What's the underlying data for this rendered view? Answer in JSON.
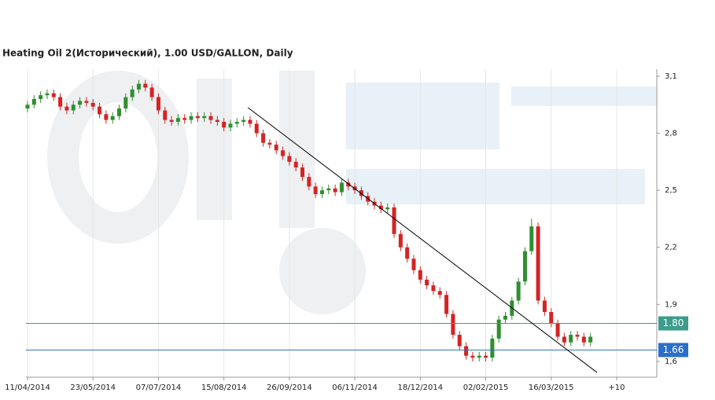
{
  "chart_data": {
    "type": "candlestick",
    "title": "Heating Oil 2(Исторический), 1.00 USD/GALLON, Daily",
    "x": [
      0,
      3,
      6,
      9,
      12,
      15,
      18,
      21,
      24,
      27,
      30,
      33,
      36,
      39,
      42,
      45,
      48,
      51,
      54,
      57,
      60,
      63,
      66,
      69,
      72,
      75,
      78,
      81,
      84,
      87,
      90,
      93,
      96,
      99,
      102,
      105,
      108,
      111,
      114,
      117,
      120,
      123,
      126,
      129,
      132,
      135,
      138,
      141,
      144,
      147,
      150,
      153,
      156,
      159,
      162,
      165,
      168,
      171,
      174,
      177,
      180,
      183,
      186,
      189,
      192,
      195,
      198,
      201,
      204,
      207,
      210,
      213,
      216,
      219,
      222,
      225,
      228,
      231,
      234,
      237,
      240,
      243,
      246,
      249,
      252,
      255,
      258
    ],
    "open": [
      2.93,
      2.95,
      2.98,
      3.0,
      3.01,
      2.99,
      2.94,
      2.92,
      2.95,
      2.97,
      2.96,
      2.94,
      2.9,
      2.87,
      2.89,
      2.93,
      2.99,
      3.03,
      3.06,
      3.04,
      2.99,
      2.92,
      2.87,
      2.86,
      2.88,
      2.87,
      2.89,
      2.88,
      2.89,
      2.87,
      2.86,
      2.83,
      2.85,
      2.86,
      2.87,
      2.85,
      2.8,
      2.75,
      2.74,
      2.71,
      2.68,
      2.65,
      2.62,
      2.57,
      2.52,
      2.48,
      2.5,
      2.51,
      2.49,
      2.54,
      2.52,
      2.5,
      2.47,
      2.44,
      2.42,
      2.4,
      2.41,
      2.27,
      2.2,
      2.14,
      2.08,
      2.03,
      2.0,
      1.97,
      1.95,
      1.85,
      1.74,
      1.68,
      1.63,
      1.62,
      1.63,
      1.62,
      1.72,
      1.82,
      1.84,
      1.92,
      2.02,
      2.18,
      2.31,
      1.92,
      1.86,
      1.8,
      1.73,
      1.7,
      1.74,
      1.73,
      1.7
    ],
    "high": [
      2.97,
      3.0,
      3.02,
      3.03,
      3.03,
      3.01,
      2.96,
      2.97,
      2.99,
      2.99,
      2.98,
      2.96,
      2.92,
      2.91,
      2.95,
      3.01,
      3.05,
      3.08,
      3.08,
      3.06,
      3.01,
      2.94,
      2.89,
      2.9,
      2.9,
      2.91,
      2.91,
      2.91,
      2.91,
      2.89,
      2.88,
      2.87,
      2.88,
      2.89,
      2.89,
      2.87,
      2.82,
      2.77,
      2.76,
      2.73,
      2.7,
      2.67,
      2.64,
      2.59,
      2.54,
      2.52,
      2.53,
      2.53,
      2.56,
      2.56,
      2.54,
      2.52,
      2.49,
      2.46,
      2.44,
      2.43,
      2.43,
      2.29,
      2.22,
      2.16,
      2.1,
      2.05,
      2.02,
      1.99,
      1.97,
      1.87,
      1.76,
      1.7,
      1.65,
      1.65,
      1.65,
      1.74,
      1.84,
      1.86,
      1.94,
      2.04,
      2.2,
      2.35,
      2.33,
      1.94,
      1.88,
      1.82,
      1.75,
      1.76,
      1.76,
      1.75,
      1.75
    ],
    "low": [
      2.91,
      2.93,
      2.96,
      2.98,
      2.97,
      2.92,
      2.9,
      2.9,
      2.93,
      2.94,
      2.92,
      2.88,
      2.85,
      2.85,
      2.87,
      2.91,
      2.97,
      3.01,
      3.02,
      2.97,
      2.9,
      2.85,
      2.84,
      2.84,
      2.85,
      2.85,
      2.86,
      2.86,
      2.85,
      2.84,
      2.81,
      2.81,
      2.83,
      2.84,
      2.83,
      2.78,
      2.73,
      2.72,
      2.69,
      2.66,
      2.63,
      2.6,
      2.55,
      2.5,
      2.46,
      2.46,
      2.48,
      2.47,
      2.47,
      2.5,
      2.48,
      2.45,
      2.42,
      2.4,
      2.38,
      2.38,
      2.25,
      2.18,
      2.12,
      2.06,
      2.01,
      1.98,
      1.95,
      1.93,
      1.83,
      1.72,
      1.66,
      1.61,
      1.6,
      1.6,
      1.6,
      1.6,
      1.7,
      1.8,
      1.82,
      1.9,
      2.0,
      2.16,
      1.9,
      1.84,
      1.78,
      1.71,
      1.68,
      1.68,
      1.71,
      1.68,
      1.68
    ],
    "close": [
      2.95,
      2.98,
      3.0,
      3.01,
      2.99,
      2.94,
      2.92,
      2.95,
      2.97,
      2.96,
      2.94,
      2.9,
      2.87,
      2.89,
      2.93,
      2.99,
      3.03,
      3.06,
      3.04,
      2.99,
      2.92,
      2.87,
      2.86,
      2.88,
      2.87,
      2.89,
      2.88,
      2.89,
      2.87,
      2.86,
      2.83,
      2.85,
      2.86,
      2.87,
      2.85,
      2.8,
      2.75,
      2.74,
      2.71,
      2.68,
      2.65,
      2.62,
      2.57,
      2.52,
      2.48,
      2.5,
      2.51,
      2.49,
      2.54,
      2.52,
      2.5,
      2.47,
      2.44,
      2.42,
      2.4,
      2.41,
      2.27,
      2.2,
      2.14,
      2.08,
      2.03,
      2.0,
      1.97,
      1.95,
      1.85,
      1.74,
      1.68,
      1.63,
      1.62,
      1.63,
      1.62,
      1.72,
      1.82,
      1.84,
      1.92,
      2.02,
      2.18,
      2.31,
      1.92,
      1.86,
      1.8,
      1.73,
      1.7,
      1.74,
      1.73,
      1.7,
      1.73
    ],
    "up_color": "#2f8f2f",
    "down_color": "#d42424",
    "xlim": [
      -0.72,
      288.4
    ],
    "xticks": [
      {
        "value": 0,
        "label": "11/04/2014"
      },
      {
        "value": 30,
        "label": "23/05/2014"
      },
      {
        "value": 60,
        "label": "07/07/2014"
      },
      {
        "value": 90,
        "label": "15/08/2014"
      },
      {
        "value": 120,
        "label": "26/09/2014"
      },
      {
        "value": 150,
        "label": "06/11/2014"
      },
      {
        "value": 180,
        "label": "18/12/2014"
      },
      {
        "value": 210,
        "label": "02/02/2015"
      },
      {
        "value": 240,
        "label": "16/03/2015"
      },
      {
        "value": 270,
        "label": "+10"
      }
    ],
    "ylim": [
      1.517,
      3.137
    ],
    "yticks": [
      {
        "value": 1.6,
        "label": "1,6"
      },
      {
        "value": 1.9,
        "label": "1,9"
      },
      {
        "value": 2.2,
        "label": "2,2"
      },
      {
        "value": 2.5,
        "label": "2,5"
      },
      {
        "value": 2.8,
        "label": "2,8"
      },
      {
        "value": 3.1,
        "label": "3,1"
      }
    ],
    "levels": [
      {
        "value": 1.8,
        "label": "1.80",
        "color": "#3d9c8c"
      },
      {
        "value": 1.66,
        "label": "1.66",
        "color": "#2a6fc9"
      }
    ],
    "trendline": {
      "x": [
        101,
        261
      ],
      "y": [
        2.935,
        1.542
      ],
      "color": "#000000"
    },
    "grid": true
  }
}
